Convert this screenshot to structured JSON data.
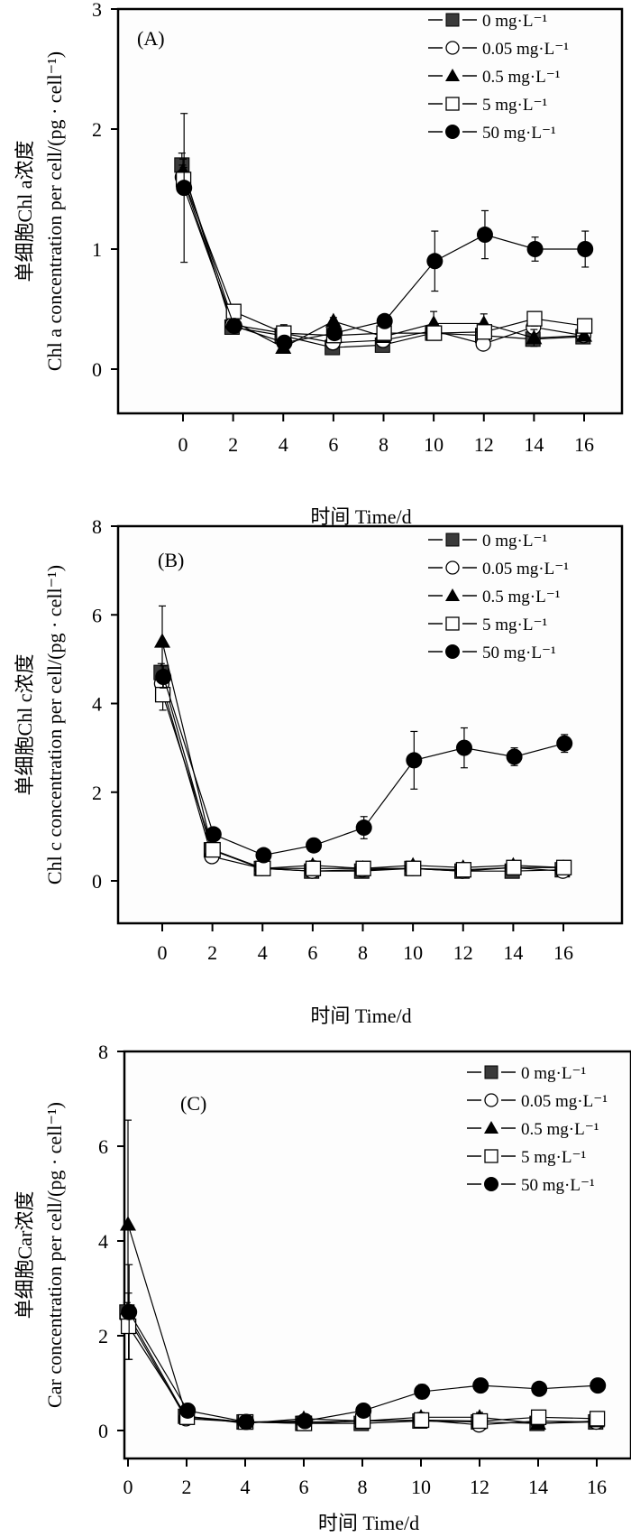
{
  "chart_data": [
    {
      "type": "line",
      "panel_label": "(A)",
      "title": "",
      "xlabel": "时间 Time/d",
      "ylabel_line1": "单细胞Chl a浓度",
      "ylabel_line2": "Chl a concentration per cell/(pg · cell⁻¹)",
      "ylim": [
        0,
        3
      ],
      "yticks": [
        0,
        1,
        2,
        3
      ],
      "xticks": [
        0,
        2,
        4,
        6,
        8,
        10,
        12,
        14,
        16
      ],
      "legend_position": "top-right",
      "x": [
        0,
        2,
        4,
        6,
        8,
        10,
        12,
        14,
        16
      ],
      "series": [
        {
          "name": "0 mg·L⁻¹",
          "marker": "square-filled",
          "values": [
            1.7,
            0.35,
            0.28,
            0.18,
            0.2,
            0.3,
            0.28,
            0.25,
            0.27
          ],
          "errors": [
            0.1,
            0.03,
            0.03,
            0.02,
            0.02,
            0.03,
            0.03,
            0.04,
            0.03
          ]
        },
        {
          "name": "0.05 mg·L⁻¹",
          "marker": "circle-open",
          "values": [
            1.6,
            0.37,
            0.3,
            0.22,
            0.24,
            0.32,
            0.21,
            0.35,
            0.28
          ],
          "errors": [
            0.1,
            0.03,
            0.03,
            0.03,
            0.03,
            0.03,
            0.03,
            0.04,
            0.03
          ]
        },
        {
          "name": "0.5 mg·L⁻¹",
          "marker": "triangle-filled",
          "values": [
            1.65,
            0.4,
            0.18,
            0.4,
            0.27,
            0.38,
            0.38,
            0.26,
            0.28
          ],
          "errors": [
            0.1,
            0.03,
            0.03,
            0.03,
            0.03,
            0.1,
            0.08,
            0.07,
            0.03
          ]
        },
        {
          "name": "5 mg·L⁻¹",
          "marker": "square-open",
          "values": [
            1.58,
            0.48,
            0.3,
            0.28,
            0.3,
            0.3,
            0.31,
            0.42,
            0.36
          ],
          "errors": [
            0.1,
            0.03,
            0.07,
            0.03,
            0.03,
            0.03,
            0.04,
            0.06,
            0.05
          ]
        },
        {
          "name": "50 mg·L⁻¹",
          "marker": "circle-filled",
          "values": [
            1.51,
            0.36,
            0.22,
            0.3,
            0.4,
            0.9,
            1.12,
            1.0,
            1.0
          ],
          "errors": [
            0.62,
            0.05,
            0.05,
            0.05,
            0.04,
            0.25,
            0.2,
            0.1,
            0.15
          ]
        }
      ]
    },
    {
      "type": "line",
      "panel_label": "(B)",
      "title": "",
      "xlabel": "时间 Time/d",
      "ylabel_line1": "单细胞Chl c浓度",
      "ylabel_line2": "Chl c concentration per cell/(pg · cell⁻¹)",
      "ylim": [
        0,
        8
      ],
      "yticks": [
        0,
        2,
        4,
        6,
        8
      ],
      "xticks": [
        0,
        2,
        4,
        6,
        8,
        10,
        12,
        14,
        16
      ],
      "legend_position": "top-right",
      "x": [
        0,
        2,
        4,
        6,
        8,
        10,
        12,
        14,
        16
      ],
      "series": [
        {
          "name": "0 mg·L⁻¹",
          "marker": "square-filled",
          "values": [
            4.7,
            0.7,
            0.28,
            0.22,
            0.22,
            0.28,
            0.22,
            0.22,
            0.25
          ],
          "errors": [
            0.2,
            0.1,
            0.05,
            0.05,
            0.05,
            0.05,
            0.05,
            0.1,
            0.05
          ]
        },
        {
          "name": "0.05 mg·L⁻¹",
          "marker": "circle-open",
          "values": [
            4.45,
            0.55,
            0.28,
            0.22,
            0.25,
            0.28,
            0.22,
            0.3,
            0.22
          ],
          "errors": [
            0.2,
            0.1,
            0.05,
            0.1,
            0.05,
            0.05,
            0.05,
            0.05,
            0.05
          ]
        },
        {
          "name": "0.5 mg·L⁻¹",
          "marker": "triangle-filled",
          "values": [
            5.4,
            0.7,
            0.28,
            0.35,
            0.28,
            0.35,
            0.3,
            0.35,
            0.3
          ],
          "errors": [
            0.8,
            0.1,
            0.05,
            0.1,
            0.05,
            0.05,
            0.05,
            0.05,
            0.05
          ]
        },
        {
          "name": "5 mg·L⁻¹",
          "marker": "square-open",
          "values": [
            4.2,
            0.7,
            0.28,
            0.28,
            0.28,
            0.28,
            0.25,
            0.3,
            0.3
          ],
          "errors": [
            0.35,
            0.1,
            0.05,
            0.05,
            0.05,
            0.05,
            0.05,
            0.05,
            0.05
          ]
        },
        {
          "name": "50 mg·L⁻¹",
          "marker": "circle-filled",
          "values": [
            4.6,
            1.05,
            0.58,
            0.8,
            1.2,
            2.72,
            3.0,
            2.8,
            3.1
          ],
          "errors": [
            0.25,
            0.05,
            0.05,
            0.05,
            0.25,
            0.65,
            0.45,
            0.2,
            0.2
          ]
        }
      ]
    },
    {
      "type": "line",
      "panel_label": "(C)",
      "title": "",
      "xlabel": "时间 Time/d",
      "ylabel_line1": "单细胞Car浓度",
      "ylabel_line2": "Car concentration per cell/(pg · cell⁻¹)",
      "ylim": [
        0,
        8
      ],
      "yticks": [
        0,
        2,
        4,
        6,
        8
      ],
      "xticks": [
        0,
        2,
        4,
        6,
        8,
        10,
        12,
        14,
        16
      ],
      "legend_position": "top-right",
      "x": [
        0,
        2,
        4,
        6,
        8,
        10,
        12,
        14,
        16
      ],
      "series": [
        {
          "name": "0 mg·L⁻¹",
          "marker": "square-filled",
          "values": [
            2.5,
            0.3,
            0.18,
            0.15,
            0.15,
            0.2,
            0.18,
            0.15,
            0.18
          ],
          "errors": [
            0.2,
            0.05,
            0.05,
            0.05,
            0.05,
            0.05,
            0.05,
            0.05,
            0.05
          ]
        },
        {
          "name": "0.05 mg·L⁻¹",
          "marker": "circle-open",
          "values": [
            2.4,
            0.25,
            0.18,
            0.18,
            0.2,
            0.22,
            0.12,
            0.2,
            0.18
          ],
          "errors": [
            0.2,
            0.05,
            0.05,
            0.05,
            0.05,
            0.05,
            0.05,
            0.05,
            0.05
          ]
        },
        {
          "name": "0.5 mg·L⁻¹",
          "marker": "triangle-filled",
          "values": [
            4.35,
            0.3,
            0.15,
            0.25,
            0.2,
            0.28,
            0.28,
            0.15,
            0.2
          ],
          "errors": [
            2.2,
            0.05,
            0.05,
            0.05,
            0.05,
            0.1,
            0.1,
            0.05,
            0.05
          ]
        },
        {
          "name": "5 mg·L⁻¹",
          "marker": "square-open",
          "values": [
            2.2,
            0.28,
            0.18,
            0.15,
            0.2,
            0.22,
            0.2,
            0.28,
            0.25
          ],
          "errors": [
            0.7,
            0.05,
            0.05,
            0.05,
            0.05,
            0.05,
            0.05,
            0.05,
            0.1
          ]
        },
        {
          "name": "50 mg·L⁻¹",
          "marker": "circle-filled",
          "values": [
            2.5,
            0.42,
            0.18,
            0.2,
            0.42,
            0.82,
            0.95,
            0.88,
            0.95
          ],
          "errors": [
            1.0,
            0.05,
            0.05,
            0.05,
            0.05,
            0.15,
            0.1,
            0.05,
            0.05
          ]
        }
      ]
    }
  ]
}
